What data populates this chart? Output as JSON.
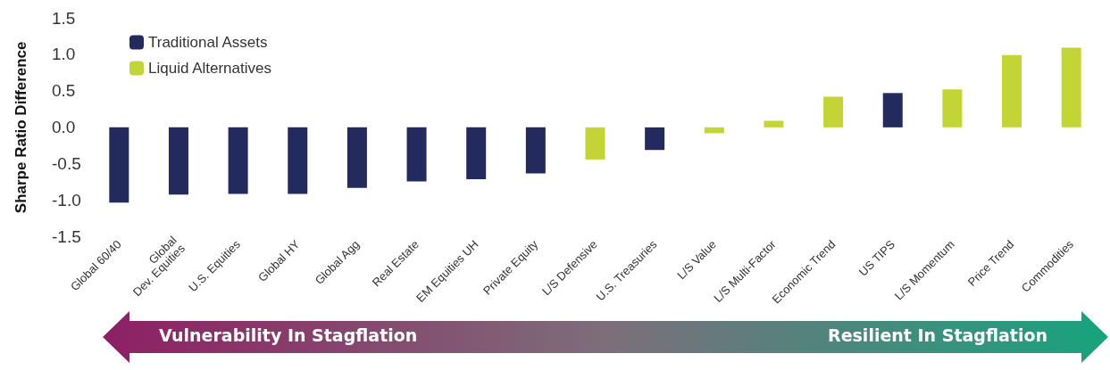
{
  "chart_data": {
    "type": "bar",
    "ylabel": "Sharpe Ratio Difference",
    "categories": [
      "Global 60/40",
      "Global\nDev. Equities",
      "U.S. Equities",
      "Global HY",
      "Global Agg",
      "Real Estate",
      "EM Equities UH",
      "Private Equity",
      "L/S Defensive",
      "U.S. Treasuries",
      "L/S Value",
      "L/S Multi-Factor",
      "Economic Trend",
      "US TIPS",
      "L/S Momentum",
      "Price Trend",
      "Commodities"
    ],
    "series": [
      {
        "name": "Traditional Assets",
        "color": "#232a5e",
        "values": [
          -1.03,
          -0.92,
          -0.91,
          -0.91,
          -0.83,
          -0.74,
          -0.71,
          -0.63,
          null,
          -0.31,
          null,
          null,
          null,
          0.47,
          null,
          null,
          null
        ]
      },
      {
        "name": "Liquid Alternatives",
        "color": "#c3d534",
        "values": [
          null,
          null,
          null,
          null,
          null,
          null,
          null,
          null,
          -0.44,
          null,
          -0.08,
          0.09,
          0.42,
          null,
          0.52,
          0.99,
          1.09
        ]
      }
    ],
    "ylim": [
      -1.5,
      1.5
    ],
    "yticks": [
      {
        "value": -1.5,
        "label": "-1.5"
      },
      {
        "value": -1,
        "label": "-1.0"
      },
      {
        "value": -0.5,
        "label": "-0.5"
      },
      {
        "value": 0,
        "label": "0.0"
      },
      {
        "value": 0.5,
        "label": "0.5"
      },
      {
        "value": 1,
        "label": "1.0"
      },
      {
        "value": 1.5,
        "label": "1.5"
      }
    ],
    "grid": false,
    "legend": "top left",
    "annotations": [
      "Vulnerability In Stagflation",
      "Resilient In Stagflation"
    ]
  }
}
